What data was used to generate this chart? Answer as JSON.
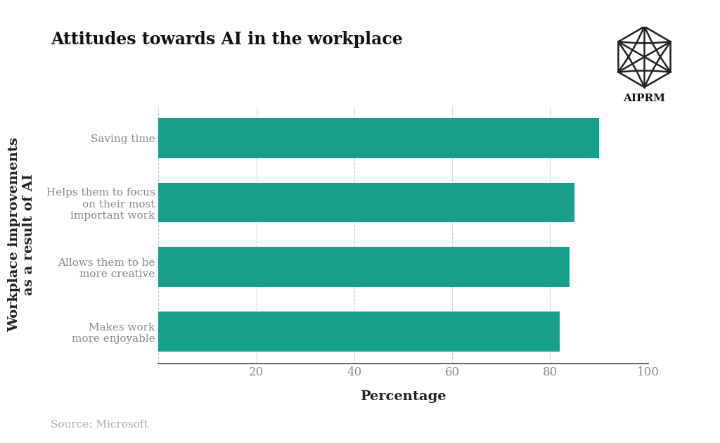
{
  "title": "Attitudes towards AI in the workplace",
  "categories": [
    "Makes work\nmore enjoyable",
    "Allows them to be\nmore creative",
    "Helps them to focus\non their most\nimportant work",
    "Saving time"
  ],
  "values": [
    82,
    84,
    85,
    90
  ],
  "bar_color": "#1a9e8c",
  "background_color": "#ffffff",
  "xlabel": "Percentage",
  "ylabel": "Workplace improvements\nas a result of AI",
  "xlim": [
    0,
    100
  ],
  "xticks": [
    0,
    20,
    40,
    60,
    80,
    100
  ],
  "source_text": "Source: Microsoft",
  "logo_text": "AIPRM",
  "title_fontsize": 17,
  "axis_label_fontsize": 14,
  "tick_fontsize": 12,
  "source_fontsize": 11,
  "bar_label_color": "#888888",
  "tick_color": "#888888"
}
